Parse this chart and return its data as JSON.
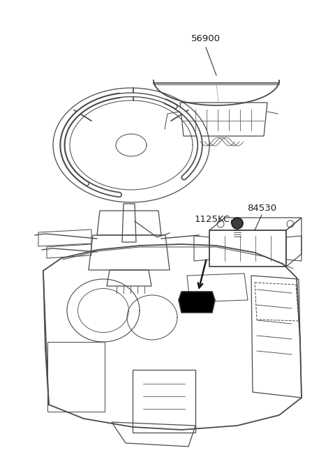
{
  "bg_color": "#ffffff",
  "line_color": "#4a4a4a",
  "dark_color": "#1a1a1a",
  "black_color": "#000000",
  "label_56900": "56900",
  "label_1125KC": "1125KC",
  "label_84530": "84530",
  "fig_width": 4.8,
  "fig_height": 6.55,
  "dpi": 100,
  "lw_main": 0.9,
  "lw_thin": 0.6,
  "lw_thick": 1.3
}
